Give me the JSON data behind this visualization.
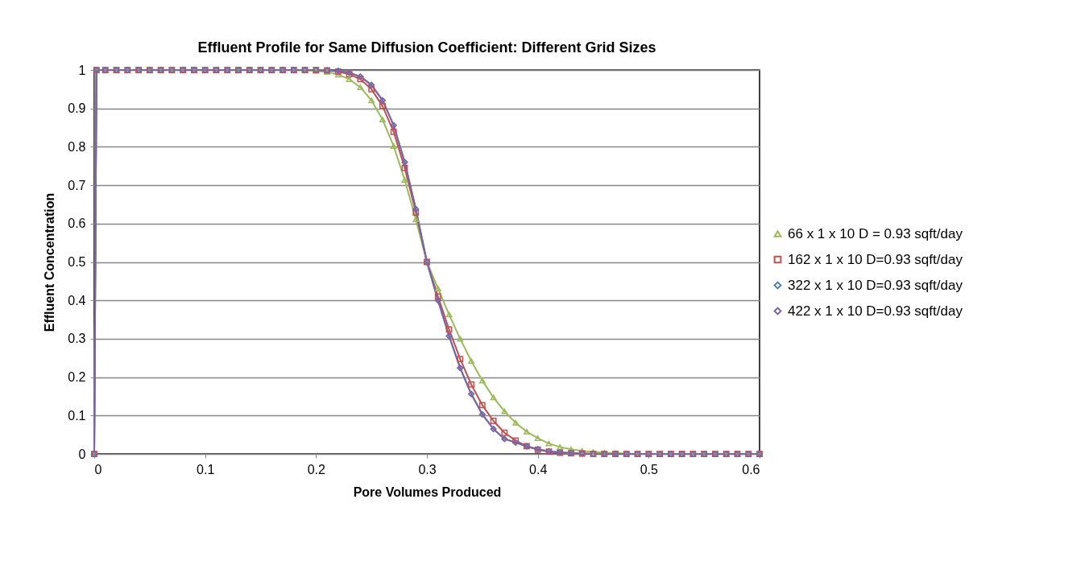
{
  "chart_data": {
    "type": "line",
    "title": "Effluent Profile for Same Diffusion Coefficient: Different Grid Sizes",
    "xlabel": "Pore Volumes Produced",
    "ylabel": "Effluent Concentration",
    "x": [
      0,
      0.002,
      0.01,
      0.02,
      0.03,
      0.04,
      0.05,
      0.06,
      0.07,
      0.08,
      0.09,
      0.1,
      0.11,
      0.12,
      0.13,
      0.14,
      0.15,
      0.16,
      0.17,
      0.18,
      0.19,
      0.2,
      0.21,
      0.22,
      0.23,
      0.24,
      0.25,
      0.26,
      0.27,
      0.28,
      0.29,
      0.3,
      0.31,
      0.32,
      0.33,
      0.34,
      0.35,
      0.36,
      0.37,
      0.38,
      0.39,
      0.4,
      0.41,
      0.42,
      0.43,
      0.44,
      0.45,
      0.46,
      0.47,
      0.48,
      0.49,
      0.5,
      0.51,
      0.52,
      0.53,
      0.54,
      0.55,
      0.56,
      0.57,
      0.58,
      0.59,
      0.6
    ],
    "series": [
      {
        "name": "66 x 1 x 10 D = 0.93 sqft/day",
        "color": "#9bbb59",
        "marker": "triangle",
        "values": [
          0,
          1,
          1,
          1,
          1,
          1,
          1,
          1,
          1,
          1,
          1,
          1,
          1,
          1,
          1,
          1,
          1,
          1,
          1,
          1,
          0.999,
          0.998,
          0.995,
          0.988,
          0.976,
          0.955,
          0.921,
          0.871,
          0.802,
          0.714,
          0.611,
          0.5,
          0.431,
          0.363,
          0.3,
          0.242,
          0.191,
          0.147,
          0.111,
          0.081,
          0.058,
          0.041,
          0.027,
          0.018,
          0.012,
          0.008,
          0.005,
          0.003,
          0.002,
          0.001,
          0,
          0,
          0,
          0,
          0,
          0,
          0,
          0,
          0,
          0,
          0,
          0
        ]
      },
      {
        "name": "162 x 1 x 10 D=0.93 sqft/day",
        "color": "#c0504d",
        "marker": "square",
        "values": [
          0,
          1,
          1,
          1,
          1,
          1,
          1,
          1,
          1,
          1,
          1,
          1,
          1,
          1,
          1,
          1,
          1,
          1,
          1,
          1,
          1,
          1,
          0.999,
          0.996,
          0.989,
          0.976,
          0.95,
          0.906,
          0.839,
          0.745,
          0.629,
          0.5,
          0.41,
          0.324,
          0.247,
          0.181,
          0.127,
          0.086,
          0.055,
          0.035,
          0.02,
          0.011,
          0.006,
          0.003,
          0.002,
          0.001,
          0,
          0,
          0,
          0,
          0,
          0,
          0,
          0,
          0,
          0,
          0,
          0,
          0,
          0,
          0,
          0
        ]
      },
      {
        "name": "322 x 1 x 10 D=0.93 sqft/day",
        "color": "#4f81bd",
        "marker": "diamond",
        "values": [
          0,
          1,
          1,
          1,
          1,
          1,
          1,
          1,
          1,
          1,
          1,
          1,
          1,
          1,
          1,
          1,
          1,
          1,
          1,
          1,
          1,
          1,
          0.999,
          0.998,
          0.993,
          0.983,
          0.961,
          0.921,
          0.856,
          0.76,
          0.638,
          0.5,
          0.4,
          0.307,
          0.224,
          0.156,
          0.103,
          0.065,
          0.039,
          0.03,
          0.02,
          0.012,
          0.007,
          0.004,
          0.002,
          0.001,
          0,
          0,
          0,
          0,
          0,
          0,
          0,
          0,
          0,
          0,
          0,
          0,
          0,
          0,
          0,
          0
        ]
      },
      {
        "name": "422 x 1 x 10 D=0.93 sqft/day",
        "color": "#8064a2",
        "marker": "diamond",
        "values": [
          0,
          1,
          1,
          1,
          1,
          1,
          1,
          1,
          1,
          1,
          1,
          1,
          1,
          1,
          1,
          1,
          1,
          1,
          1,
          1,
          1,
          1,
          0.999,
          0.998,
          0.993,
          0.983,
          0.961,
          0.921,
          0.856,
          0.76,
          0.638,
          0.5,
          0.4,
          0.307,
          0.224,
          0.156,
          0.103,
          0.065,
          0.039,
          0.03,
          0.02,
          0.012,
          0.007,
          0.004,
          0.002,
          0.001,
          0,
          0,
          0,
          0,
          0,
          0,
          0,
          0,
          0,
          0,
          0,
          0,
          0,
          0,
          0,
          0
        ]
      }
    ],
    "xlim": [
      0,
      0.6
    ],
    "xticks": [
      0,
      0.1,
      0.2,
      0.3,
      0.4,
      0.5,
      0.6
    ],
    "ylim": [
      0,
      1
    ],
    "yticks": [
      0,
      0.1,
      0.2,
      0.3,
      0.4,
      0.5,
      0.6,
      0.7,
      0.8,
      0.9,
      1
    ],
    "grid": "y",
    "legend": "right"
  }
}
